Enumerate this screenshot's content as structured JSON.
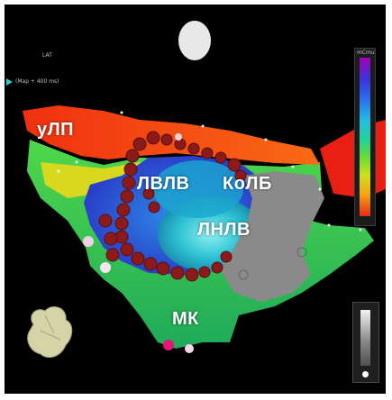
{
  "viewer": {
    "info_title": "LAT",
    "info_line": "(Map + 400 ms)",
    "scale_top": "mCmu",
    "chamber_labels": {
      "ulp": "уЛП",
      "lvrv": "ЛВЛВ",
      "kolb": "КоЛБ",
      "lnlv": "ЛНЛВ",
      "mk": "МК"
    }
  },
  "colors": {
    "background": "#000000",
    "frame": "#ffffff",
    "label": "#ffffff",
    "ablation_point": "#8b1a1a",
    "scale_top": "#a100b8",
    "scale_bottom": "#e82818"
  },
  "icons": {
    "orientation": "heart-orientation-icon",
    "cursor": "triangle-cursor-icon",
    "patch": "reference-patch-icon"
  }
}
